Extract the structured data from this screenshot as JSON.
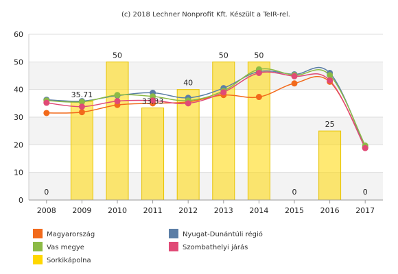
{
  "credit": "(c) 2018 Lechner Nonprofit Kft. Készült a TeIR-rel.",
  "chart_data": {
    "type": "bar",
    "categories": [
      "2008",
      "2009",
      "2010",
      "2011",
      "2012",
      "2013",
      "2014",
      "2015",
      "2016",
      "2017"
    ],
    "ylim": [
      0,
      60
    ],
    "yticks": [
      0,
      10,
      20,
      30,
      40,
      50,
      60
    ],
    "grid": true,
    "legend_position": "bottom",
    "bar_series": {
      "name": "Sorkikápolna",
      "color": "#ffd700",
      "values": [
        0,
        35.71,
        50,
        33.33,
        40,
        50,
        50,
        0,
        25,
        0
      ],
      "labels": [
        "0",
        "35.71",
        "50",
        "33.33",
        "40",
        "50",
        "50",
        "0",
        "25",
        "0"
      ]
    },
    "line_series": [
      {
        "name": "Magyarország",
        "type": "line",
        "color": "#f26a1b",
        "values": [
          31.5,
          31.8,
          34.4,
          35.0,
          35.5,
          38.0,
          37.3,
          42.2,
          42.8,
          19.2
        ]
      },
      {
        "name": "Vas megye",
        "type": "line",
        "color": "#8cba46",
        "values": [
          36.0,
          35.5,
          38.0,
          37.5,
          36.0,
          39.5,
          47.3,
          45.2,
          45.2,
          19.7
        ]
      },
      {
        "name": "Nyugat-Dunántúli régió",
        "type": "line",
        "color": "#5b7ea6",
        "values": [
          36.3,
          35.8,
          37.8,
          38.8,
          37.0,
          40.5,
          46.5,
          45.5,
          46.0,
          19.0
        ]
      },
      {
        "name": "Szombathelyi járás",
        "type": "line",
        "color": "#e04a76",
        "values": [
          35.2,
          33.8,
          35.8,
          36.0,
          35.0,
          39.0,
          46.0,
          44.8,
          43.3,
          18.8
        ]
      }
    ],
    "legend": [
      {
        "label": "Magyarország",
        "color": "#f26a1b"
      },
      {
        "label": "Nyugat-Dunántúli régió",
        "color": "#5b7ea6"
      },
      {
        "label": "Vas megye",
        "color": "#8cba46"
      },
      {
        "label": "Szombathelyi járás",
        "color": "#e04a76"
      },
      {
        "label": "Sorkikápolna",
        "color": "#ffd700"
      }
    ]
  }
}
